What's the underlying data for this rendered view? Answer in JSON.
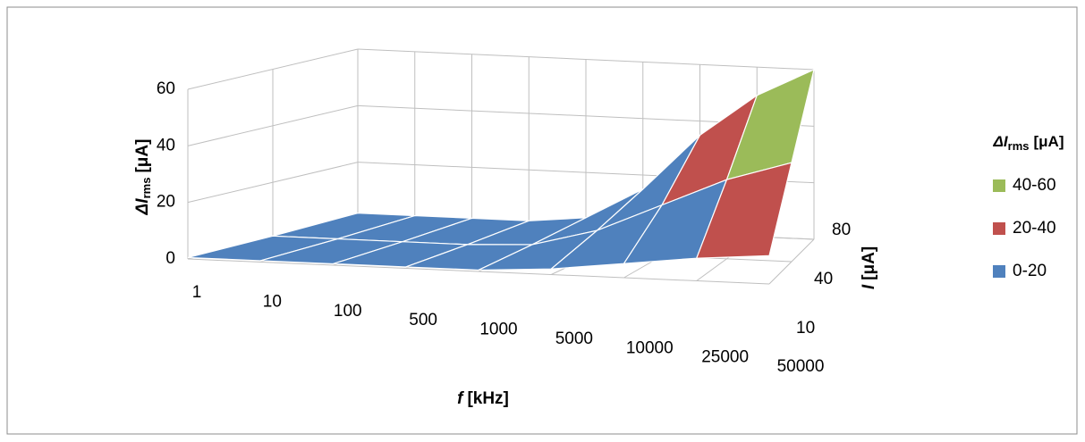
{
  "chart_data": {
    "type": "surface",
    "x_label": {
      "symbol": "f",
      "unit": "[kHz]"
    },
    "y_label": {
      "symbol": "ΔI",
      "sub": "rms",
      "unit": "[μA]"
    },
    "z_label": {
      "symbol": "I",
      "unit": "[μA]"
    },
    "categories": [
      "1",
      "10",
      "100",
      "500",
      "1000",
      "5000",
      "10000",
      "25000",
      "50000"
    ],
    "series": [
      {
        "name": "10",
        "values": [
          0.5,
          0.5,
          0.5,
          0.5,
          0.5,
          2,
          5,
          8,
          10
        ]
      },
      {
        "name": "40",
        "values": [
          1,
          1,
          1,
          1,
          2,
          8,
          18,
          28,
          35
        ]
      },
      {
        "name": "80",
        "values": [
          2,
          2,
          2,
          2,
          4,
          15,
          35,
          50,
          60
        ]
      }
    ],
    "ylim": [
      0,
      60
    ],
    "yticks": [
      0,
      20,
      40,
      60
    ],
    "grid": true,
    "legend": {
      "position": "right",
      "title": {
        "symbol": "ΔI",
        "sub": "rms",
        "unit": "[μA]"
      },
      "bands": [
        {
          "label": "40-60",
          "min": 40,
          "max": 60,
          "color": "#9bbb59"
        },
        {
          "label": "20-40",
          "min": 20,
          "max": 40,
          "color": "#c0504d"
        },
        {
          "label": "0-20",
          "min": 0,
          "max": 20,
          "color": "#4f81bd"
        }
      ]
    }
  }
}
